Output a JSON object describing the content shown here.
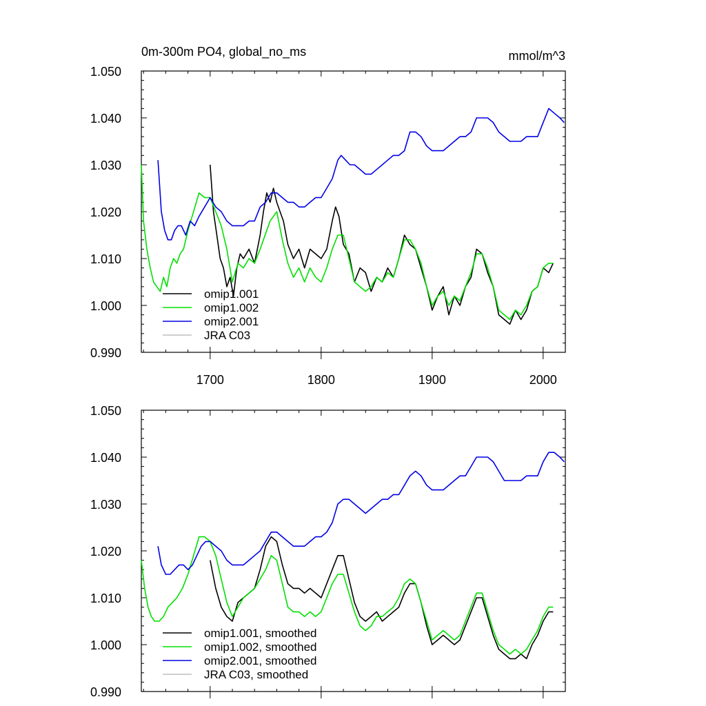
{
  "chart_data": [
    {
      "type": "line",
      "title": "0m-300m PO4, global_no_ms",
      "units": "mmol/m^3",
      "xlim": [
        1638,
        2020
      ],
      "ylim": [
        0.99,
        1.05
      ],
      "yticks": [
        "0.990",
        "1.000",
        "1.010",
        "1.020",
        "1.030",
        "1.040",
        "1.050"
      ],
      "xticks": [
        "1700",
        "1800",
        "1900",
        "2000"
      ],
      "legend_position": "bottom-left",
      "series": [
        {
          "name": "omip1.001",
          "color": "#000000",
          "x": [
            1700,
            1703,
            1706,
            1709,
            1712,
            1715,
            1718,
            1721,
            1724,
            1727,
            1730,
            1735,
            1740,
            1745,
            1748,
            1751,
            1754,
            1757,
            1760,
            1763,
            1766,
            1770,
            1775,
            1780,
            1785,
            1790,
            1795,
            1800,
            1805,
            1810,
            1813,
            1816,
            1820,
            1825,
            1830,
            1835,
            1840,
            1845,
            1850,
            1855,
            1860,
            1865,
            1870,
            1875,
            1880,
            1885,
            1890,
            1895,
            1900,
            1905,
            1910,
            1915,
            1920,
            1925,
            1930,
            1935,
            1940,
            1945,
            1950,
            1955,
            1960,
            1965,
            1970,
            1975,
            1980,
            1985,
            1990,
            1995,
            2000,
            2005,
            2009
          ],
          "y": [
            1.03,
            1.02,
            1.015,
            1.01,
            1.008,
            1.004,
            1.006,
            1.002,
            1.008,
            1.011,
            1.01,
            1.012,
            1.009,
            1.015,
            1.02,
            1.024,
            1.022,
            1.025,
            1.022,
            1.02,
            1.018,
            1.013,
            1.01,
            1.012,
            1.008,
            1.012,
            1.011,
            1.01,
            1.012,
            1.018,
            1.021,
            1.019,
            1.013,
            1.011,
            1.005,
            1.008,
            1.007,
            1.003,
            1.006,
            1.005,
            1.008,
            1.006,
            1.01,
            1.015,
            1.013,
            1.012,
            1.008,
            1.004,
            0.999,
            1.002,
            1.004,
            0.998,
            1.002,
            1.0,
            1.004,
            1.006,
            1.012,
            1.011,
            1.007,
            1.004,
            0.998,
            0.997,
            0.996,
            0.999,
            0.997,
            0.999,
            1.003,
            1.004,
            1.008,
            1.007,
            1.009
          ]
        },
        {
          "name": "omip1.002",
          "color": "#00e000",
          "x": [
            1638,
            1640,
            1643,
            1646,
            1649,
            1652,
            1655,
            1658,
            1661,
            1664,
            1667,
            1670,
            1673,
            1676,
            1680,
            1685,
            1690,
            1695,
            1700,
            1705,
            1710,
            1715,
            1720,
            1725,
            1730,
            1735,
            1740,
            1745,
            1748,
            1751,
            1754,
            1757,
            1760,
            1765,
            1770,
            1775,
            1780,
            1785,
            1790,
            1795,
            1800,
            1805,
            1810,
            1815,
            1820,
            1825,
            1830,
            1835,
            1840,
            1845,
            1850,
            1855,
            1860,
            1865,
            1870,
            1875,
            1880,
            1885,
            1890,
            1895,
            1900,
            1905,
            1910,
            1915,
            1920,
            1925,
            1930,
            1935,
            1940,
            1945,
            1950,
            1955,
            1960,
            1965,
            1970,
            1975,
            1980,
            1985,
            1990,
            1995,
            2000,
            2005,
            2009
          ],
          "y": [
            1.03,
            1.018,
            1.012,
            1.008,
            1.005,
            1.004,
            1.003,
            1.006,
            1.004,
            1.008,
            1.01,
            1.009,
            1.011,
            1.012,
            1.016,
            1.02,
            1.024,
            1.023,
            1.023,
            1.02,
            1.017,
            1.012,
            1.005,
            1.009,
            1.008,
            1.01,
            1.009,
            1.012,
            1.014,
            1.016,
            1.018,
            1.019,
            1.02,
            1.014,
            1.009,
            1.006,
            1.008,
            1.005,
            1.008,
            1.006,
            1.005,
            1.008,
            1.012,
            1.015,
            1.015,
            1.01,
            1.005,
            1.004,
            1.003,
            1.004,
            1.006,
            1.005,
            1.007,
            1.006,
            1.01,
            1.014,
            1.014,
            1.012,
            1.009,
            1.004,
            1.0,
            1.002,
            1.003,
            1.0,
            1.002,
            1.001,
            1.004,
            1.007,
            1.011,
            1.011,
            1.008,
            1.004,
            0.999,
            0.998,
            0.997,
            0.999,
            0.998,
            1.0,
            1.003,
            1.004,
            1.008,
            1.009,
            1.009
          ]
        },
        {
          "name": "omip2.001",
          "color": "#0000e6",
          "x": [
            1653,
            1656,
            1659,
            1662,
            1665,
            1668,
            1671,
            1674,
            1678,
            1682,
            1686,
            1690,
            1695,
            1700,
            1705,
            1710,
            1715,
            1720,
            1725,
            1730,
            1735,
            1740,
            1745,
            1750,
            1755,
            1760,
            1765,
            1770,
            1775,
            1780,
            1785,
            1790,
            1795,
            1800,
            1805,
            1810,
            1815,
            1818,
            1822,
            1826,
            1830,
            1835,
            1840,
            1845,
            1850,
            1855,
            1860,
            1865,
            1870,
            1875,
            1880,
            1885,
            1890,
            1895,
            1900,
            1905,
            1910,
            1915,
            1920,
            1925,
            1930,
            1935,
            1940,
            1945,
            1950,
            1955,
            1960,
            1965,
            1970,
            1975,
            1980,
            1985,
            1990,
            1995,
            2000,
            2005,
            2010,
            2015,
            2019
          ],
          "y": [
            1.031,
            1.02,
            1.016,
            1.014,
            1.014,
            1.016,
            1.017,
            1.017,
            1.015,
            1.018,
            1.017,
            1.019,
            1.021,
            1.023,
            1.021,
            1.02,
            1.018,
            1.017,
            1.017,
            1.017,
            1.018,
            1.018,
            1.021,
            1.022,
            1.024,
            1.024,
            1.023,
            1.022,
            1.022,
            1.021,
            1.021,
            1.022,
            1.023,
            1.023,
            1.025,
            1.027,
            1.031,
            1.032,
            1.031,
            1.03,
            1.03,
            1.029,
            1.028,
            1.028,
            1.029,
            1.03,
            1.031,
            1.032,
            1.032,
            1.033,
            1.037,
            1.037,
            1.036,
            1.034,
            1.033,
            1.033,
            1.033,
            1.034,
            1.035,
            1.036,
            1.036,
            1.037,
            1.04,
            1.04,
            1.04,
            1.039,
            1.037,
            1.036,
            1.035,
            1.035,
            1.035,
            1.036,
            1.036,
            1.036,
            1.039,
            1.042,
            1.041,
            1.04,
            1.039
          ]
        },
        {
          "name": "JRA C03",
          "color": "#bdbdbd",
          "x": [],
          "y": []
        }
      ]
    },
    {
      "type": "line",
      "xlim": [
        1638,
        2020
      ],
      "ylim": [
        0.99,
        1.05
      ],
      "yticks": [
        "0.990",
        "1.000",
        "1.010",
        "1.020",
        "1.030",
        "1.040",
        "1.050"
      ],
      "legend_position": "bottom-left",
      "series": [
        {
          "name": "omip1.001, smoothed",
          "color": "#000000",
          "x": [
            1700,
            1705,
            1710,
            1715,
            1720,
            1725,
            1730,
            1735,
            1740,
            1745,
            1750,
            1755,
            1760,
            1765,
            1770,
            1775,
            1780,
            1785,
            1790,
            1795,
            1800,
            1805,
            1810,
            1815,
            1820,
            1825,
            1830,
            1835,
            1840,
            1845,
            1850,
            1855,
            1860,
            1865,
            1870,
            1875,
            1880,
            1885,
            1890,
            1895,
            1900,
            1905,
            1910,
            1915,
            1920,
            1925,
            1930,
            1935,
            1940,
            1945,
            1950,
            1955,
            1960,
            1965,
            1970,
            1975,
            1980,
            1985,
            1990,
            1995,
            2000,
            2005,
            2009
          ],
          "y": [
            1.018,
            1.012,
            1.008,
            1.006,
            1.005,
            1.009,
            1.01,
            1.011,
            1.012,
            1.016,
            1.021,
            1.023,
            1.022,
            1.017,
            1.013,
            1.012,
            1.012,
            1.011,
            1.012,
            1.011,
            1.01,
            1.013,
            1.016,
            1.019,
            1.019,
            1.014,
            1.009,
            1.006,
            1.005,
            1.006,
            1.007,
            1.005,
            1.006,
            1.007,
            1.008,
            1.011,
            1.013,
            1.013,
            1.009,
            1.004,
            1.0,
            1.001,
            1.002,
            1.001,
            1.0,
            1.001,
            1.004,
            1.007,
            1.01,
            1.01,
            1.006,
            1.002,
            0.999,
            0.998,
            0.997,
            0.997,
            0.998,
            0.997,
            1.0,
            1.002,
            1.005,
            1.007,
            1.007
          ]
        },
        {
          "name": "omip1.002, smoothed",
          "color": "#00e000",
          "x": [
            1638,
            1641,
            1644,
            1647,
            1650,
            1654,
            1658,
            1662,
            1666,
            1670,
            1675,
            1680,
            1685,
            1690,
            1695,
            1700,
            1705,
            1710,
            1715,
            1720,
            1725,
            1730,
            1735,
            1740,
            1745,
            1750,
            1755,
            1760,
            1765,
            1770,
            1775,
            1780,
            1785,
            1790,
            1795,
            1800,
            1805,
            1810,
            1815,
            1820,
            1825,
            1830,
            1835,
            1840,
            1845,
            1850,
            1855,
            1860,
            1865,
            1870,
            1875,
            1880,
            1885,
            1890,
            1895,
            1900,
            1905,
            1910,
            1915,
            1920,
            1925,
            1930,
            1935,
            1940,
            1945,
            1950,
            1955,
            1960,
            1965,
            1970,
            1975,
            1980,
            1985,
            1990,
            1995,
            2000,
            2005,
            2009
          ],
          "y": [
            1.018,
            1.012,
            1.008,
            1.006,
            1.005,
            1.005,
            1.006,
            1.008,
            1.009,
            1.01,
            1.012,
            1.015,
            1.019,
            1.023,
            1.023,
            1.022,
            1.019,
            1.014,
            1.009,
            1.006,
            1.008,
            1.01,
            1.011,
            1.012,
            1.014,
            1.016,
            1.019,
            1.018,
            1.013,
            1.008,
            1.007,
            1.007,
            1.006,
            1.007,
            1.006,
            1.007,
            1.01,
            1.013,
            1.015,
            1.015,
            1.011,
            1.007,
            1.004,
            1.003,
            1.004,
            1.006,
            1.006,
            1.007,
            1.008,
            1.01,
            1.013,
            1.014,
            1.013,
            1.009,
            1.005,
            1.001,
            1.002,
            1.003,
            1.002,
            1.001,
            1.002,
            1.005,
            1.008,
            1.011,
            1.011,
            1.007,
            1.003,
            1.0,
            0.999,
            0.998,
            0.999,
            0.998,
            0.999,
            1.001,
            1.003,
            1.006,
            1.008,
            1.008
          ]
        },
        {
          "name": "omip2.001, smoothed",
          "color": "#0000e6",
          "x": [
            1653,
            1656,
            1660,
            1664,
            1668,
            1672,
            1676,
            1680,
            1684,
            1688,
            1692,
            1696,
            1700,
            1705,
            1710,
            1715,
            1720,
            1725,
            1730,
            1735,
            1740,
            1745,
            1750,
            1755,
            1760,
            1765,
            1770,
            1775,
            1780,
            1785,
            1790,
            1795,
            1800,
            1805,
            1810,
            1815,
            1820,
            1825,
            1830,
            1835,
            1840,
            1845,
            1850,
            1855,
            1860,
            1865,
            1870,
            1875,
            1880,
            1885,
            1890,
            1895,
            1900,
            1905,
            1910,
            1915,
            1920,
            1925,
            1930,
            1935,
            1940,
            1945,
            1950,
            1955,
            1960,
            1965,
            1970,
            1975,
            1980,
            1985,
            1990,
            1995,
            2000,
            2005,
            2010,
            2015,
            2019
          ],
          "y": [
            1.021,
            1.017,
            1.015,
            1.015,
            1.016,
            1.017,
            1.017,
            1.016,
            1.017,
            1.019,
            1.021,
            1.022,
            1.022,
            1.021,
            1.02,
            1.018,
            1.017,
            1.017,
            1.017,
            1.018,
            1.019,
            1.02,
            1.022,
            1.024,
            1.024,
            1.023,
            1.022,
            1.021,
            1.021,
            1.021,
            1.022,
            1.023,
            1.023,
            1.024,
            1.026,
            1.03,
            1.031,
            1.031,
            1.03,
            1.029,
            1.028,
            1.029,
            1.03,
            1.031,
            1.031,
            1.032,
            1.032,
            1.034,
            1.036,
            1.037,
            1.036,
            1.034,
            1.033,
            1.033,
            1.033,
            1.034,
            1.035,
            1.036,
            1.036,
            1.038,
            1.04,
            1.04,
            1.04,
            1.039,
            1.037,
            1.035,
            1.035,
            1.035,
            1.035,
            1.036,
            1.036,
            1.036,
            1.039,
            1.041,
            1.041,
            1.04,
            1.039
          ]
        },
        {
          "name": "JRA C03, smoothed",
          "color": "#bdbdbd",
          "x": [],
          "y": []
        }
      ]
    }
  ]
}
